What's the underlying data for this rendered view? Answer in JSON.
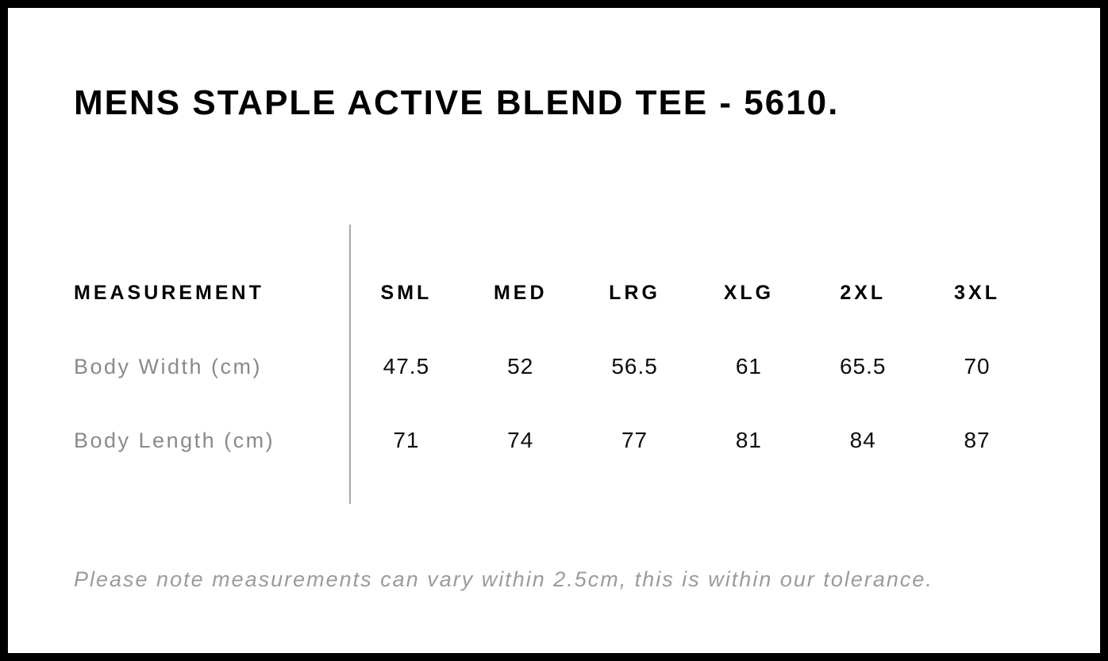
{
  "page": {
    "title": "MENS STAPLE ACTIVE BLEND TEE - 5610.",
    "note": "Please note measurements can vary within 2.5cm, this is within our tolerance."
  },
  "size_chart": {
    "measurement_header": "MEASUREMENT",
    "columns": [
      "SML",
      "MED",
      "LRG",
      "XLG",
      "2XL",
      "3XL"
    ],
    "rows": [
      {
        "label": "Body Width (cm)",
        "values": [
          "47.5",
          "52",
          "56.5",
          "61",
          "65.5",
          "70"
        ]
      },
      {
        "label": "Body Length (cm)",
        "values": [
          "71",
          "74",
          "77",
          "81",
          "84",
          "87"
        ]
      }
    ]
  },
  "colors": {
    "frame": "#000000",
    "title_text": "#000000",
    "header_text": "#000000",
    "value_text": "#0d0d0d",
    "row_label_text": "#8a8a8a",
    "note_text": "#9b9b9b",
    "divider": "#a8a8a8",
    "background": "#ffffff"
  }
}
